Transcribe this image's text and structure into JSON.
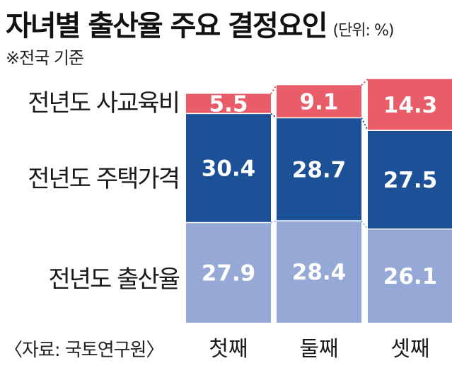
{
  "title": "자녀별 출산율 주요 결정요인",
  "unit": "(단위: %)",
  "subtitle": "※전국 기준",
  "source": "〈자료: 국토연구원〉",
  "colors": {
    "private_education": "#e95d69",
    "housing": "#1c5198",
    "fertility": "#95a8d6",
    "connector_private_education": "#d84a56",
    "connector_housing": "#1c4a8c",
    "connector_fertility": "#8fa3d1"
  },
  "chart_data": {
    "type": "bar",
    "stacked": true,
    "categories": [
      "첫째",
      "둘째",
      "셋째"
    ],
    "series": [
      {
        "name": "전년도 출산율",
        "key": "fertility",
        "values": [
          27.9,
          28.4,
          26.1
        ]
      },
      {
        "name": "전년도 주택가격",
        "key": "housing",
        "values": [
          30.4,
          28.7,
          27.5
        ]
      },
      {
        "name": "전년도 사교육비",
        "key": "private_education",
        "values": [
          5.5,
          9.1,
          14.3
        ]
      }
    ],
    "ylim": [
      0,
      68
    ],
    "grid": false,
    "legend": "left, labels aligned to segments",
    "connectors": "dotted lines between bar segments"
  }
}
